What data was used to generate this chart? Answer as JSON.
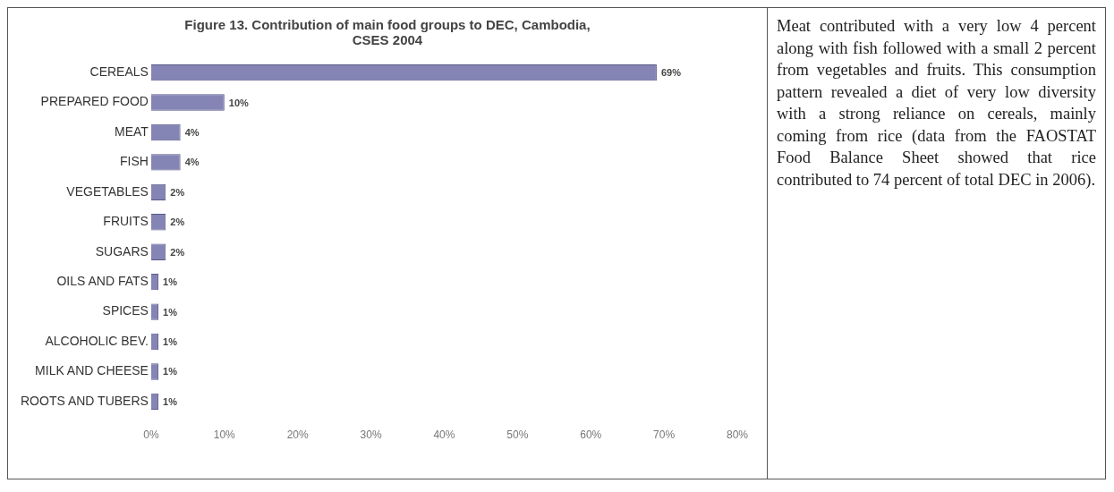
{
  "chart_data": {
    "type": "bar",
    "orientation": "horizontal",
    "title": "Figure 13. Contribution of main food groups to DEC, Cambodia, CSES 2004",
    "categories": [
      "CEREALS",
      "PREPARED FOOD",
      "MEAT",
      "FISH",
      "VEGETABLES",
      "FRUITS",
      "SUGARS",
      "OILS AND FATS",
      "SPICES",
      "ALCOHOLIC BEV.",
      "MILK AND CHEESE",
      "ROOTS AND TUBERS"
    ],
    "values": [
      69,
      10,
      4,
      4,
      2,
      2,
      2,
      1,
      1,
      1,
      1,
      1
    ],
    "value_labels": [
      "69%",
      "10%",
      "4%",
      "4%",
      "2%",
      "2%",
      "2%",
      "1%",
      "1%",
      "1%",
      "1%",
      "1%"
    ],
    "color": "#8585b5",
    "xlim": [
      0,
      80
    ],
    "xticks": [
      {
        "value": 0,
        "label": "0%"
      },
      {
        "value": 10,
        "label": "10%"
      },
      {
        "value": 20,
        "label": "20%"
      },
      {
        "value": 30,
        "label": "30%"
      },
      {
        "value": 40,
        "label": "40%"
      },
      {
        "value": 50,
        "label": "50%"
      },
      {
        "value": 60,
        "label": "60%"
      },
      {
        "value": 70,
        "label": "70%"
      },
      {
        "value": 80,
        "label": "80%"
      }
    ],
    "grid": false,
    "legend": false,
    "annotations": [
      "Meat contributed with a very low 4 percent along with fish followed with a small 2 percent from vegetables and fruits. This consumption pattern revealed a diet of very low diversity with a strong reliance on cereals, mainly coming from rice (data from the FAOSTAT Food Balance Sheet showed that rice contributed to 74 percent of total DEC in 2006)."
    ]
  }
}
